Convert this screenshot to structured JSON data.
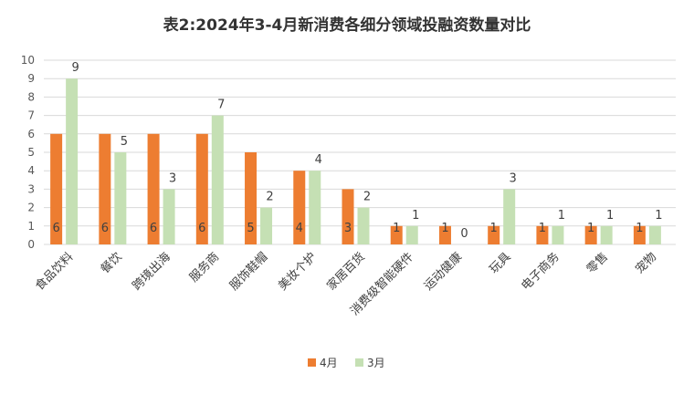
{
  "chart_data": {
    "type": "bar",
    "title": "表2:2024年3-4月新消费各细分领域投融资数量对比",
    "xlabel": "",
    "ylabel": "",
    "ylim": [
      0,
      10
    ],
    "yticks": [
      "0",
      "1",
      "2",
      "3",
      "4",
      "5",
      "6",
      "7",
      "8",
      "9",
      "10"
    ],
    "grid": true,
    "legend_position": "bottom",
    "categories": [
      "食品饮料",
      "餐饮",
      "跨境出海",
      "服务商",
      "服饰鞋帽",
      "美妆个护",
      "家居百货",
      "消费级智能硬件",
      "运动健康",
      "玩具",
      "电子商务",
      "零售",
      "宠物"
    ],
    "series": [
      {
        "name": "4月",
        "color": "#ed7d31",
        "values": [
          6,
          6,
          6,
          6,
          5,
          4,
          3,
          1,
          1,
          1,
          1,
          1,
          1
        ]
      },
      {
        "name": "3月",
        "color": "#c5e0b4",
        "values": [
          9,
          5,
          3,
          7,
          2,
          4,
          2,
          1,
          0,
          3,
          1,
          1,
          1
        ]
      }
    ]
  }
}
